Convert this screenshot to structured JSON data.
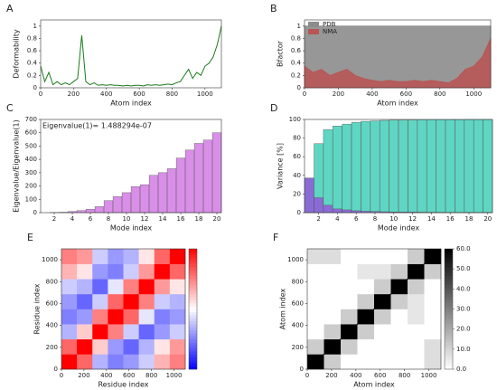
{
  "chart_data": [
    {
      "type": "line",
      "label": "A",
      "xlabel": "Atom index",
      "ylabel": "Deformability",
      "color": "#1a7a1a",
      "x": [
        0,
        25,
        50,
        75,
        100,
        125,
        150,
        175,
        200,
        225,
        250,
        275,
        300,
        325,
        350,
        375,
        400,
        425,
        450,
        475,
        500,
        525,
        550,
        575,
        600,
        625,
        650,
        675,
        700,
        725,
        750,
        775,
        800,
        825,
        850,
        875,
        900,
        925,
        950,
        975,
        1000,
        1025,
        1050,
        1075,
        1100
      ],
      "values": [
        0.35,
        0.1,
        0.25,
        0.05,
        0.1,
        0.05,
        0.08,
        0.05,
        0.1,
        0.15,
        0.85,
        0.1,
        0.05,
        0.08,
        0.04,
        0.05,
        0.04,
        0.05,
        0.04,
        0.04,
        0.03,
        0.04,
        0.03,
        0.04,
        0.04,
        0.03,
        0.05,
        0.04,
        0.05,
        0.04,
        0.05,
        0.06,
        0.05,
        0.08,
        0.1,
        0.2,
        0.3,
        0.15,
        0.25,
        0.2,
        0.35,
        0.4,
        0.5,
        0.7,
        1.0
      ],
      "xlim": [
        0,
        1100
      ],
      "xticks": [
        0,
        200,
        400,
        600,
        800,
        1000
      ],
      "ylim": [
        0,
        1.1
      ],
      "yticks": [
        0,
        0.2,
        0.4,
        0.6,
        0.8,
        1
      ]
    },
    {
      "type": "area",
      "label": "B",
      "xlabel": "Atom index",
      "ylabel": "Bfactor",
      "legend": "upper left",
      "x": [
        0,
        50,
        100,
        150,
        200,
        250,
        300,
        350,
        400,
        450,
        500,
        550,
        600,
        650,
        700,
        750,
        800,
        850,
        900,
        950,
        1000,
        1050,
        1100
      ],
      "series": [
        {
          "name": "PDB",
          "color": "#8c8c8c",
          "values": [
            1,
            1,
            1,
            1,
            1,
            1,
            1,
            1,
            1,
            1,
            1,
            1,
            1,
            1,
            1,
            1,
            1,
            1,
            1,
            1,
            1,
            1,
            1
          ]
        },
        {
          "name": "NMA",
          "color": "#b85555",
          "values": [
            0.35,
            0.25,
            0.3,
            0.2,
            0.25,
            0.3,
            0.2,
            0.15,
            0.12,
            0.1,
            0.12,
            0.1,
            0.1,
            0.12,
            0.1,
            0.12,
            0.1,
            0.08,
            0.15,
            0.3,
            0.35,
            0.5,
            0.8
          ]
        }
      ],
      "xlim": [
        0,
        1100
      ],
      "xticks": [
        0,
        200,
        400,
        600,
        800,
        1000
      ],
      "ylim": [
        0,
        1.1
      ],
      "yticks": [
        0,
        0.2,
        0.4,
        0.6,
        0.8,
        1
      ]
    },
    {
      "type": "bar",
      "label": "C",
      "xlabel": "Mode index",
      "ylabel": "Eigenvalue/Eigenvalue(1)",
      "annotation": "Eigenvalue(1)= 1.488294e-07",
      "x": [
        1,
        2,
        3,
        4,
        5,
        6,
        7,
        8,
        9,
        10,
        11,
        12,
        13,
        14,
        15,
        16,
        17,
        18,
        19,
        20
      ],
      "series": [
        {
          "color": "#d98ee8",
          "values": [
            0,
            1,
            3,
            8,
            15,
            25,
            45,
            90,
            120,
            150,
            195,
            210,
            280,
            300,
            330,
            410,
            470,
            520,
            545,
            600
          ]
        }
      ],
      "xlim": [
        0.5,
        20.5
      ],
      "xticks": [
        2,
        4,
        6,
        8,
        10,
        12,
        14,
        16,
        18,
        20
      ],
      "ylim": [
        0,
        700
      ],
      "yticks": [
        0,
        100,
        200,
        300,
        400,
        500,
        600,
        700
      ]
    },
    {
      "type": "bar",
      "label": "D",
      "xlabel": "Mode index",
      "ylabel": "Variance [%]",
      "x": [
        1,
        2,
        3,
        4,
        5,
        6,
        7,
        8,
        9,
        10,
        11,
        12,
        13,
        14,
        15,
        16,
        17,
        18,
        19,
        20
      ],
      "series": [
        {
          "color": "#5fd6c3",
          "values": [
            37,
            74,
            89,
            93,
            95,
            97,
            98,
            98.5,
            99,
            99.2,
            99.4,
            99.5,
            99.6,
            99.7,
            99.7,
            99.8,
            99.8,
            99.9,
            99.9,
            100
          ]
        },
        {
          "color": "#8a6bd6",
          "values": [
            37,
            16,
            8,
            4,
            3,
            2,
            1.5,
            1.2,
            1,
            0.8,
            0.7,
            0.6,
            0.5,
            0.4,
            0.4,
            0.3,
            0.3,
            0.3,
            0.2,
            0.2
          ]
        }
      ],
      "xlim": [
        0.5,
        20.5
      ],
      "xticks": [
        2,
        4,
        6,
        8,
        10,
        12,
        14,
        16,
        18,
        20
      ],
      "ylim": [
        0,
        100
      ],
      "yticks": [
        0,
        20,
        40,
        60,
        80,
        100
      ]
    },
    {
      "type": "heatmap",
      "label": "E",
      "xlabel": "Residue index",
      "ylabel": "Residue index",
      "colormap": "bwr",
      "z": [
        [
          1,
          0.6,
          -0.3,
          -0.5,
          -0.4,
          -0.2,
          0.3,
          0.5
        ],
        [
          0.6,
          1,
          0.2,
          -0.4,
          -0.6,
          -0.3,
          0.1,
          0.4
        ],
        [
          -0.3,
          0.2,
          1,
          0.5,
          -0.2,
          -0.6,
          -0.4,
          -0.2
        ],
        [
          -0.5,
          -0.4,
          0.5,
          1,
          0.6,
          -0.1,
          -0.5,
          -0.4
        ],
        [
          -0.4,
          -0.6,
          -0.2,
          0.6,
          1,
          0.5,
          -0.2,
          -0.3
        ],
        [
          -0.2,
          -0.3,
          -0.6,
          -0.1,
          0.5,
          1,
          0.4,
          0.1
        ],
        [
          0.3,
          0.1,
          -0.4,
          -0.5,
          -0.2,
          0.4,
          1,
          0.6
        ],
        [
          0.5,
          0.4,
          -0.2,
          -0.4,
          -0.3,
          0.1,
          0.6,
          1
        ]
      ],
      "zlim": [
        -1,
        1
      ],
      "xlim": [
        0,
        1100
      ],
      "xticks": [
        0,
        200,
        400,
        600,
        800,
        1000
      ],
      "ylim": [
        0,
        1100
      ],
      "yticks": [
        0,
        200,
        400,
        600,
        800,
        1000
      ]
    },
    {
      "type": "heatmap",
      "label": "F",
      "xlabel": "Atom index",
      "ylabel": "Atom index",
      "colormap": "Greys",
      "z": [
        [
          60,
          12,
          0,
          0,
          0,
          0,
          0,
          8
        ],
        [
          12,
          60,
          12,
          0,
          0,
          0,
          0,
          8
        ],
        [
          0,
          12,
          60,
          12,
          0,
          0,
          0,
          0
        ],
        [
          0,
          0,
          12,
          60,
          12,
          0,
          6,
          0
        ],
        [
          0,
          0,
          0,
          12,
          60,
          12,
          6,
          0
        ],
        [
          0,
          0,
          0,
          0,
          12,
          60,
          12,
          0
        ],
        [
          0,
          0,
          0,
          6,
          6,
          12,
          60,
          12
        ],
        [
          8,
          8,
          0,
          0,
          0,
          0,
          12,
          60
        ]
      ],
      "zlim": [
        0,
        60
      ],
      "zticks": [
        {
          "value": 0,
          "label": "0.0"
        },
        {
          "value": 10,
          "label": "10.0"
        },
        {
          "value": 20,
          "label": "20.0"
        },
        {
          "value": 30,
          "label": "30.0"
        },
        {
          "value": 40,
          "label": "40.0"
        },
        {
          "value": 50,
          "label": "50.0"
        },
        {
          "value": 60,
          "label": "60.0"
        }
      ],
      "xlim": [
        0,
        1100
      ],
      "xticks": [
        0,
        200,
        400,
        600,
        800,
        1000
      ],
      "ylim": [
        0,
        1100
      ],
      "yticks": [
        0,
        200,
        400,
        600,
        800,
        1000
      ]
    }
  ]
}
